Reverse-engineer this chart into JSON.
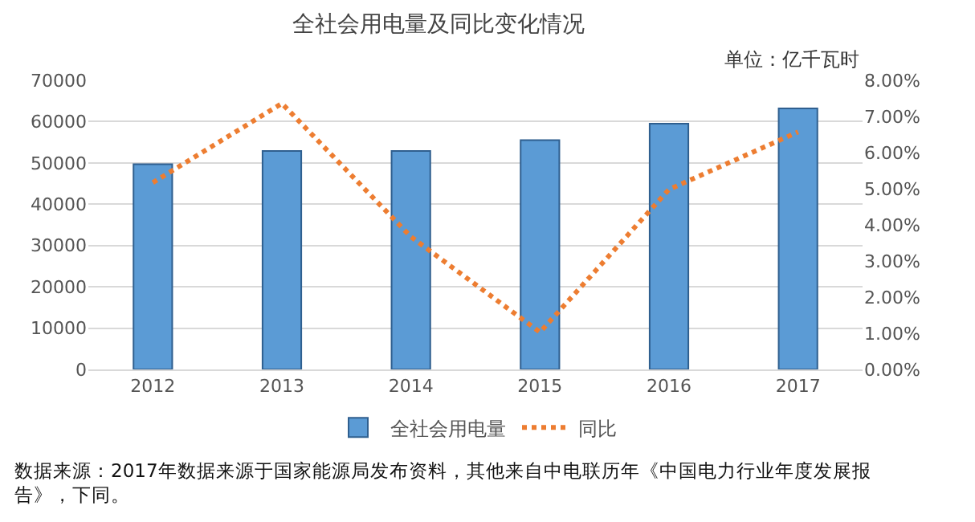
{
  "chart_data": {
    "type": "bar",
    "title": "全社会用电量及同比变化情况",
    "categories": [
      "2012",
      "2013",
      "2014",
      "2015",
      "2016",
      "2017"
    ],
    "series": [
      {
        "name": "全社会用电量",
        "color": "#5b9bd5",
        "values": [
          49700,
          52900,
          52900,
          55500,
          59500,
          63200
        ]
      },
      {
        "name": "同比",
        "type": "line",
        "axis": "y2",
        "color": "#ed7d31",
        "line_style": "dotted",
        "values": [
          5.17,
          7.36,
          3.67,
          1.03,
          4.98,
          6.57
        ]
      }
    ],
    "ylim": [
      0,
      70000
    ],
    "yticks": [
      0,
      10000,
      20000,
      30000,
      40000,
      50000,
      60000,
      70000
    ],
    "y2lim": [
      0,
      8
    ],
    "y2ticks": [
      {
        "value": 0,
        "label": "0.00%"
      },
      {
        "value": 1,
        "label": "1.00%"
      },
      {
        "value": 2,
        "label": "2.00%"
      },
      {
        "value": 3,
        "label": "3.00%"
      },
      {
        "value": 4,
        "label": "4.00%"
      },
      {
        "value": 5,
        "label": "5.00%"
      },
      {
        "value": 6,
        "label": "6.00%"
      },
      {
        "value": 7,
        "label": "7.00%"
      },
      {
        "value": 8,
        "label": "8.00%"
      }
    ],
    "grid": "y",
    "legend": "bottom",
    "annotations": [
      "单位：亿千瓦时",
      "数据来源：2017年数据来源于国家能源局发布资料，其他来自中电联历年《中国电力行业年度发展报告》，下同。"
    ]
  }
}
